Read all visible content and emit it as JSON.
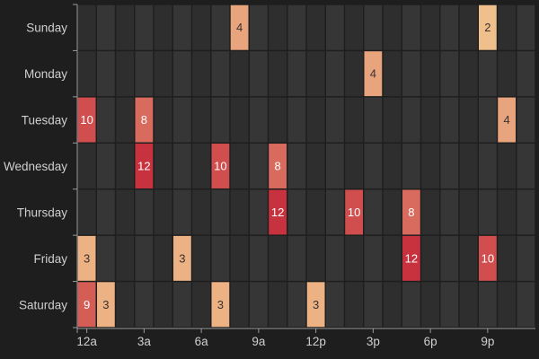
{
  "chart_data": {
    "type": "heatmap",
    "title": "",
    "xlabel": "",
    "ylabel": "",
    "rows": [
      "Sunday",
      "Monday",
      "Tuesday",
      "Wednesday",
      "Thursday",
      "Friday",
      "Saturday"
    ],
    "columns": [
      "0",
      "1",
      "2",
      "3",
      "4",
      "5",
      "6",
      "7",
      "8",
      "9",
      "10",
      "11",
      "12",
      "13",
      "14",
      "15",
      "16",
      "17",
      "18",
      "19",
      "20",
      "21",
      "22",
      "23"
    ],
    "x_tick_labels": [
      {
        "hour": 0,
        "label": "12a"
      },
      {
        "hour": 3,
        "label": "3a"
      },
      {
        "hour": 6,
        "label": "6a"
      },
      {
        "hour": 9,
        "label": "9a"
      },
      {
        "hour": 12,
        "label": "12p"
      },
      {
        "hour": 15,
        "label": "3p"
      },
      {
        "hour": 18,
        "label": "6p"
      },
      {
        "hour": 21,
        "label": "9p"
      }
    ],
    "cells": [
      {
        "day": "Sunday",
        "hour": 8,
        "value": 4
      },
      {
        "day": "Sunday",
        "hour": 21,
        "value": 2
      },
      {
        "day": "Monday",
        "hour": 15,
        "value": 4
      },
      {
        "day": "Tuesday",
        "hour": 0,
        "value": 10
      },
      {
        "day": "Tuesday",
        "hour": 3,
        "value": 8
      },
      {
        "day": "Tuesday",
        "hour": 22,
        "value": 4
      },
      {
        "day": "Wednesday",
        "hour": 3,
        "value": 12
      },
      {
        "day": "Wednesday",
        "hour": 7,
        "value": 10
      },
      {
        "day": "Wednesday",
        "hour": 10,
        "value": 8
      },
      {
        "day": "Thursday",
        "hour": 10,
        "value": 12
      },
      {
        "day": "Thursday",
        "hour": 14,
        "value": 10
      },
      {
        "day": "Thursday",
        "hour": 17,
        "value": 8
      },
      {
        "day": "Friday",
        "hour": 0,
        "value": 3
      },
      {
        "day": "Friday",
        "hour": 5,
        "value": 3
      },
      {
        "day": "Friday",
        "hour": 17,
        "value": 12
      },
      {
        "day": "Friday",
        "hour": 21,
        "value": 10
      },
      {
        "day": "Saturday",
        "hour": 0,
        "value": 9
      },
      {
        "day": "Saturday",
        "hour": 1,
        "value": 3
      },
      {
        "day": "Saturday",
        "hour": 7,
        "value": 3
      },
      {
        "day": "Saturday",
        "hour": 12,
        "value": 3
      }
    ],
    "color_scale": {
      "low": "#f0c08c",
      "high": "#c8323e",
      "min": 2,
      "max": 12
    },
    "cell_stripe_colors": [
      "#2e2e2e",
      "#363636"
    ],
    "background": "#1f1e1f",
    "text_color": "#cfcfcf",
    "grid": false,
    "legend": "none"
  }
}
